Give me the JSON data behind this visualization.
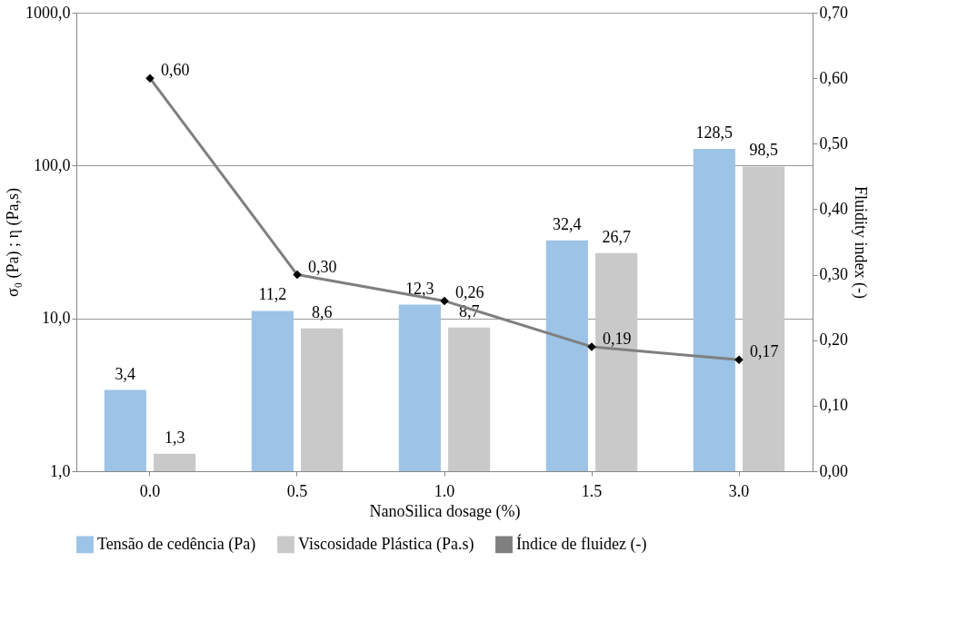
{
  "chart_data": {
    "type": "bar",
    "xlabel": "NanoSilica dosage (%)",
    "ylabel": "σ₀ (Pa) ; η (Pa,s)",
    "y2label": "Fluidity index (-)",
    "categories": [
      "0.0",
      "0.5",
      "1.0",
      "1.5",
      "3.0"
    ],
    "series": [
      {
        "name": "Tensão de cedência (Pa)",
        "color": "#9dc3e6",
        "values": [
          3.4,
          11.2,
          12.3,
          32.4,
          128.5
        ],
        "value_labels": [
          "3,4",
          "11,2",
          "12,3",
          "32,4",
          "128,5"
        ]
      },
      {
        "name": "Viscosidade Plástica (Pa.s)",
        "color": "#c9c9c9",
        "values": [
          1.3,
          8.6,
          8.7,
          26.7,
          98.5
        ],
        "value_labels": [
          "1,3",
          "8,6",
          "8,7",
          "26,7",
          "98,5"
        ]
      },
      {
        "name": "Índice de fluidez (-)",
        "type": "line",
        "axis": "y2",
        "color": "#7f7f7f",
        "marker": "diamond",
        "values": [
          0.6,
          0.3,
          0.26,
          0.19,
          0.17
        ],
        "value_labels": [
          "0,60",
          "0,30",
          "0,26",
          "0,19",
          "0,17"
        ]
      }
    ],
    "log": "y",
    "ylim": [
      1,
      1000
    ],
    "yticks": [
      {
        "value": 1,
        "label": "1,0"
      },
      {
        "value": 10,
        "label": "10,0"
      },
      {
        "value": 100,
        "label": "100,0"
      },
      {
        "value": 1000,
        "label": "1000,0"
      }
    ],
    "y2lim": [
      0,
      0.7
    ],
    "y2ticks": [
      {
        "value": 0,
        "label": "0,00"
      },
      {
        "value": 0.1,
        "label": "0,10"
      },
      {
        "value": 0.2,
        "label": "0,20"
      },
      {
        "value": 0.3,
        "label": "0,30"
      },
      {
        "value": 0.4,
        "label": "0,40"
      },
      {
        "value": 0.5,
        "label": "0,50"
      },
      {
        "value": 0.6,
        "label": "0,60"
      },
      {
        "value": 0.7,
        "label": "0,70"
      }
    ],
    "grid": "y",
    "legend": "bottom"
  }
}
